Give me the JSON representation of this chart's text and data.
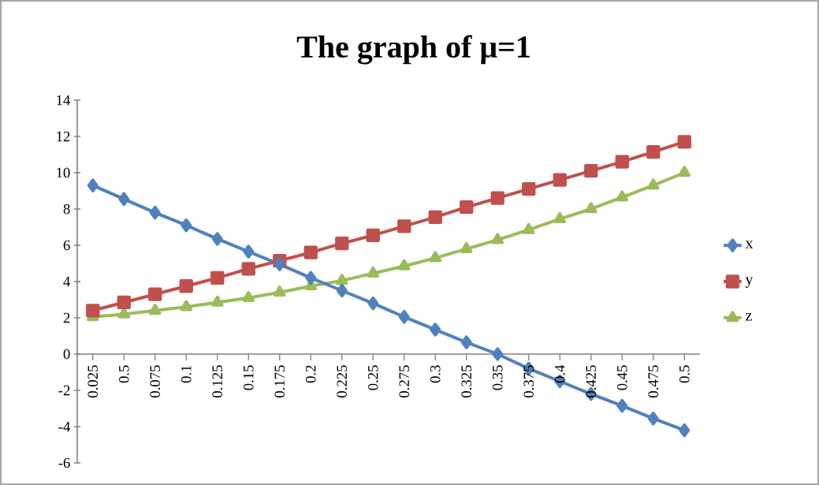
{
  "chart_data": {
    "type": "line",
    "title": "The graph of μ=1",
    "categories": [
      "0.025",
      "0.5",
      "0.075",
      "0.1",
      "0.125",
      "0.15",
      "0.175",
      "0.2",
      "0.225",
      "0.25",
      "0.275",
      "0.3",
      "0.325",
      "0.35",
      "0.375",
      "0.4",
      "0.425",
      "0.45",
      "0.475",
      "0.5"
    ],
    "series": [
      {
        "name": "x",
        "color": "#4f81bd",
        "marker": "diamond",
        "values": [
          9.3,
          8.55,
          7.8,
          7.1,
          6.35,
          5.65,
          4.95,
          4.2,
          3.5,
          2.8,
          2.05,
          1.35,
          0.65,
          0.0,
          -0.8,
          -1.5,
          -2.2,
          -2.85,
          -3.55,
          -4.2
        ]
      },
      {
        "name": "y",
        "color": "#c0504d",
        "marker": "square",
        "values": [
          2.4,
          2.85,
          3.3,
          3.75,
          4.2,
          4.7,
          5.15,
          5.6,
          6.1,
          6.55,
          7.05,
          7.55,
          8.1,
          8.6,
          9.1,
          9.6,
          10.1,
          10.6,
          11.15,
          11.7
        ]
      },
      {
        "name": "z",
        "color": "#9bbb59",
        "marker": "triangle",
        "values": [
          2.05,
          2.2,
          2.4,
          2.6,
          2.85,
          3.1,
          3.4,
          3.75,
          4.05,
          4.45,
          4.85,
          5.3,
          5.8,
          6.3,
          6.85,
          7.45,
          8.0,
          8.65,
          9.3,
          10.0
        ]
      }
    ],
    "ylim": [
      -6,
      14
    ],
    "yticks": [
      -6,
      -4,
      -2,
      0,
      2,
      4,
      6,
      8,
      10,
      12,
      14
    ],
    "legend": "right",
    "grid": false,
    "line_style": "solid"
  }
}
